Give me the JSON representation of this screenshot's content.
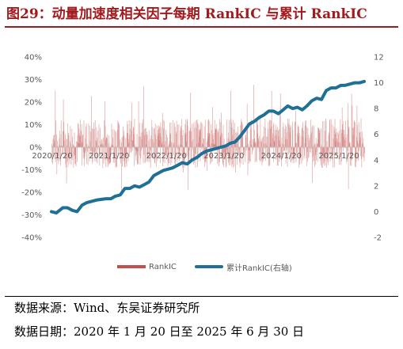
{
  "header": {
    "title": "图29：动量加速度相关因子每期 RankIC 与累计 RankIC"
  },
  "footer": {
    "source": "数据来源：Wind、东吴证券研究所",
    "date_range": "数据日期：2020 年 1 月 20 日至 2025 年 6 月 30 日"
  },
  "colors": {
    "title": "#a11a1e",
    "bar": "#c0504d",
    "line": "#1f6f97",
    "axis_text": "#595959"
  },
  "chart_data": {
    "type": "bar",
    "x_tick_labels": [
      "2020/1/20",
      "2021/1/20",
      "2022/1/20",
      "2023/1/20",
      "2024/1/20",
      "2025/1/20"
    ],
    "x_range": [
      "2020-01-20",
      "2025-06-30"
    ],
    "y_left": {
      "ylim": [
        -0.4,
        0.4
      ],
      "tick_labels": [
        "40%",
        "30%",
        "20%",
        "10%",
        "0%",
        "-10%",
        "-20%",
        "-30%",
        "-40%"
      ]
    },
    "y_right": {
      "ylim": [
        -2,
        12
      ],
      "tick_labels": [
        "12",
        "10",
        "8",
        "6",
        "4",
        "2",
        "0",
        "-2"
      ]
    },
    "grid": false,
    "legend_position": "bottom",
    "series": [
      {
        "name": "RankIC",
        "type": "bar",
        "axis": "left",
        "note": "daily RankIC values, range about -0.35 to 0.30",
        "approx_values_by_month": []
      },
      {
        "name": "累计RankIC(右轴)",
        "type": "line",
        "axis": "right",
        "points": [
          [
            "2020-01-20",
            0.0
          ],
          [
            "2020-02-20",
            -0.1
          ],
          [
            "2020-04-01",
            0.3
          ],
          [
            "2020-05-01",
            0.3
          ],
          [
            "2020-06-01",
            0.1
          ],
          [
            "2020-07-01",
            0.0
          ],
          [
            "2020-08-01",
            0.5
          ],
          [
            "2020-09-01",
            0.7
          ],
          [
            "2020-11-01",
            0.9
          ],
          [
            "2021-01-01",
            1.0
          ],
          [
            "2021-02-01",
            1.0
          ],
          [
            "2021-03-01",
            1.2
          ],
          [
            "2021-04-01",
            1.3
          ],
          [
            "2021-05-01",
            1.8
          ],
          [
            "2021-06-01",
            1.8
          ],
          [
            "2021-07-01",
            2.0
          ],
          [
            "2021-08-01",
            1.9
          ],
          [
            "2021-09-01",
            2.1
          ],
          [
            "2021-10-01",
            2.3
          ],
          [
            "2021-11-01",
            2.8
          ],
          [
            "2022-01-01",
            3.2
          ],
          [
            "2022-02-01",
            3.3
          ],
          [
            "2022-03-01",
            3.4
          ],
          [
            "2022-04-01",
            3.6
          ],
          [
            "2022-05-01",
            3.8
          ],
          [
            "2022-06-01",
            3.7
          ],
          [
            "2022-07-01",
            4.0
          ],
          [
            "2022-08-01",
            4.2
          ],
          [
            "2022-09-01",
            4.5
          ],
          [
            "2022-10-01",
            4.7
          ],
          [
            "2022-11-01",
            4.8
          ],
          [
            "2023-01-01",
            5.0
          ],
          [
            "2023-02-01",
            5.1
          ],
          [
            "2023-03-01",
            5.3
          ],
          [
            "2023-04-01",
            5.4
          ],
          [
            "2023-05-01",
            5.8
          ],
          [
            "2023-06-01",
            6.3
          ],
          [
            "2023-07-01",
            6.8
          ],
          [
            "2023-08-01",
            7.0
          ],
          [
            "2023-09-01",
            7.3
          ],
          [
            "2023-10-01",
            7.5
          ],
          [
            "2023-11-01",
            7.8
          ],
          [
            "2023-12-01",
            7.8
          ],
          [
            "2024-01-01",
            7.6
          ],
          [
            "2024-02-01",
            7.9
          ],
          [
            "2024-03-01",
            8.2
          ],
          [
            "2024-04-01",
            8.0
          ],
          [
            "2024-05-01",
            8.1
          ],
          [
            "2024-06-01",
            7.9
          ],
          [
            "2024-07-01",
            8.2
          ],
          [
            "2024-08-01",
            8.6
          ],
          [
            "2024-09-01",
            8.8
          ],
          [
            "2024-10-01",
            8.7
          ],
          [
            "2024-11-01",
            9.4
          ],
          [
            "2024-12-01",
            9.6
          ],
          [
            "2025-01-01",
            9.6
          ],
          [
            "2025-02-01",
            9.8
          ],
          [
            "2025-03-01",
            9.8
          ],
          [
            "2025-04-01",
            9.9
          ],
          [
            "2025-05-01",
            10.0
          ],
          [
            "2025-06-01",
            10.0
          ],
          [
            "2025-06-30",
            10.1
          ]
        ]
      }
    ]
  }
}
